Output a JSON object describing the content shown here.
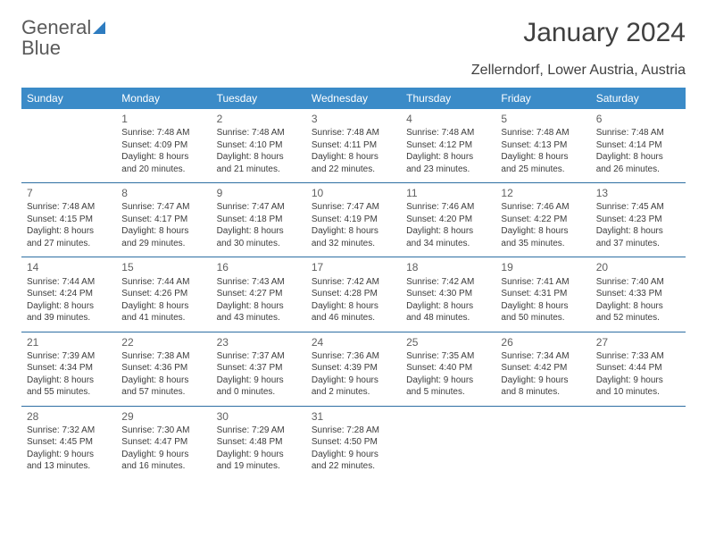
{
  "logo": {
    "word1": "General",
    "word2": "Blue"
  },
  "title": "January 2024",
  "subtitle": "Zellerndorf, Lower Austria, Austria",
  "colors": {
    "header_bg": "#3b8bc8",
    "header_text": "#ffffff",
    "row_border": "#2e6fa3",
    "body_text": "#3c3c3c",
    "daynum_text": "#606060",
    "logo_gray": "#5a5a5a",
    "logo_blue": "#2e7cc0",
    "background": "#ffffff"
  },
  "typography": {
    "title_fontsize": 30,
    "subtitle_fontsize": 16,
    "th_fontsize": 12,
    "daynum_fontsize": 12,
    "cell_fontsize": 10
  },
  "layout": {
    "columns": 7,
    "rows": 5
  },
  "day_headers": [
    "Sunday",
    "Monday",
    "Tuesday",
    "Wednesday",
    "Thursday",
    "Friday",
    "Saturday"
  ],
  "weeks": [
    [
      {
        "num": "",
        "sunrise": "",
        "sunset": "",
        "daylight1": "",
        "daylight2": ""
      },
      {
        "num": "1",
        "sunrise": "Sunrise: 7:48 AM",
        "sunset": "Sunset: 4:09 PM",
        "daylight1": "Daylight: 8 hours",
        "daylight2": "and 20 minutes."
      },
      {
        "num": "2",
        "sunrise": "Sunrise: 7:48 AM",
        "sunset": "Sunset: 4:10 PM",
        "daylight1": "Daylight: 8 hours",
        "daylight2": "and 21 minutes."
      },
      {
        "num": "3",
        "sunrise": "Sunrise: 7:48 AM",
        "sunset": "Sunset: 4:11 PM",
        "daylight1": "Daylight: 8 hours",
        "daylight2": "and 22 minutes."
      },
      {
        "num": "4",
        "sunrise": "Sunrise: 7:48 AM",
        "sunset": "Sunset: 4:12 PM",
        "daylight1": "Daylight: 8 hours",
        "daylight2": "and 23 minutes."
      },
      {
        "num": "5",
        "sunrise": "Sunrise: 7:48 AM",
        "sunset": "Sunset: 4:13 PM",
        "daylight1": "Daylight: 8 hours",
        "daylight2": "and 25 minutes."
      },
      {
        "num": "6",
        "sunrise": "Sunrise: 7:48 AM",
        "sunset": "Sunset: 4:14 PM",
        "daylight1": "Daylight: 8 hours",
        "daylight2": "and 26 minutes."
      }
    ],
    [
      {
        "num": "7",
        "sunrise": "Sunrise: 7:48 AM",
        "sunset": "Sunset: 4:15 PM",
        "daylight1": "Daylight: 8 hours",
        "daylight2": "and 27 minutes."
      },
      {
        "num": "8",
        "sunrise": "Sunrise: 7:47 AM",
        "sunset": "Sunset: 4:17 PM",
        "daylight1": "Daylight: 8 hours",
        "daylight2": "and 29 minutes."
      },
      {
        "num": "9",
        "sunrise": "Sunrise: 7:47 AM",
        "sunset": "Sunset: 4:18 PM",
        "daylight1": "Daylight: 8 hours",
        "daylight2": "and 30 minutes."
      },
      {
        "num": "10",
        "sunrise": "Sunrise: 7:47 AM",
        "sunset": "Sunset: 4:19 PM",
        "daylight1": "Daylight: 8 hours",
        "daylight2": "and 32 minutes."
      },
      {
        "num": "11",
        "sunrise": "Sunrise: 7:46 AM",
        "sunset": "Sunset: 4:20 PM",
        "daylight1": "Daylight: 8 hours",
        "daylight2": "and 34 minutes."
      },
      {
        "num": "12",
        "sunrise": "Sunrise: 7:46 AM",
        "sunset": "Sunset: 4:22 PM",
        "daylight1": "Daylight: 8 hours",
        "daylight2": "and 35 minutes."
      },
      {
        "num": "13",
        "sunrise": "Sunrise: 7:45 AM",
        "sunset": "Sunset: 4:23 PM",
        "daylight1": "Daylight: 8 hours",
        "daylight2": "and 37 minutes."
      }
    ],
    [
      {
        "num": "14",
        "sunrise": "Sunrise: 7:44 AM",
        "sunset": "Sunset: 4:24 PM",
        "daylight1": "Daylight: 8 hours",
        "daylight2": "and 39 minutes."
      },
      {
        "num": "15",
        "sunrise": "Sunrise: 7:44 AM",
        "sunset": "Sunset: 4:26 PM",
        "daylight1": "Daylight: 8 hours",
        "daylight2": "and 41 minutes."
      },
      {
        "num": "16",
        "sunrise": "Sunrise: 7:43 AM",
        "sunset": "Sunset: 4:27 PM",
        "daylight1": "Daylight: 8 hours",
        "daylight2": "and 43 minutes."
      },
      {
        "num": "17",
        "sunrise": "Sunrise: 7:42 AM",
        "sunset": "Sunset: 4:28 PM",
        "daylight1": "Daylight: 8 hours",
        "daylight2": "and 46 minutes."
      },
      {
        "num": "18",
        "sunrise": "Sunrise: 7:42 AM",
        "sunset": "Sunset: 4:30 PM",
        "daylight1": "Daylight: 8 hours",
        "daylight2": "and 48 minutes."
      },
      {
        "num": "19",
        "sunrise": "Sunrise: 7:41 AM",
        "sunset": "Sunset: 4:31 PM",
        "daylight1": "Daylight: 8 hours",
        "daylight2": "and 50 minutes."
      },
      {
        "num": "20",
        "sunrise": "Sunrise: 7:40 AM",
        "sunset": "Sunset: 4:33 PM",
        "daylight1": "Daylight: 8 hours",
        "daylight2": "and 52 minutes."
      }
    ],
    [
      {
        "num": "21",
        "sunrise": "Sunrise: 7:39 AM",
        "sunset": "Sunset: 4:34 PM",
        "daylight1": "Daylight: 8 hours",
        "daylight2": "and 55 minutes."
      },
      {
        "num": "22",
        "sunrise": "Sunrise: 7:38 AM",
        "sunset": "Sunset: 4:36 PM",
        "daylight1": "Daylight: 8 hours",
        "daylight2": "and 57 minutes."
      },
      {
        "num": "23",
        "sunrise": "Sunrise: 7:37 AM",
        "sunset": "Sunset: 4:37 PM",
        "daylight1": "Daylight: 9 hours",
        "daylight2": "and 0 minutes."
      },
      {
        "num": "24",
        "sunrise": "Sunrise: 7:36 AM",
        "sunset": "Sunset: 4:39 PM",
        "daylight1": "Daylight: 9 hours",
        "daylight2": "and 2 minutes."
      },
      {
        "num": "25",
        "sunrise": "Sunrise: 7:35 AM",
        "sunset": "Sunset: 4:40 PM",
        "daylight1": "Daylight: 9 hours",
        "daylight2": "and 5 minutes."
      },
      {
        "num": "26",
        "sunrise": "Sunrise: 7:34 AM",
        "sunset": "Sunset: 4:42 PM",
        "daylight1": "Daylight: 9 hours",
        "daylight2": "and 8 minutes."
      },
      {
        "num": "27",
        "sunrise": "Sunrise: 7:33 AM",
        "sunset": "Sunset: 4:44 PM",
        "daylight1": "Daylight: 9 hours",
        "daylight2": "and 10 minutes."
      }
    ],
    [
      {
        "num": "28",
        "sunrise": "Sunrise: 7:32 AM",
        "sunset": "Sunset: 4:45 PM",
        "daylight1": "Daylight: 9 hours",
        "daylight2": "and 13 minutes."
      },
      {
        "num": "29",
        "sunrise": "Sunrise: 7:30 AM",
        "sunset": "Sunset: 4:47 PM",
        "daylight1": "Daylight: 9 hours",
        "daylight2": "and 16 minutes."
      },
      {
        "num": "30",
        "sunrise": "Sunrise: 7:29 AM",
        "sunset": "Sunset: 4:48 PM",
        "daylight1": "Daylight: 9 hours",
        "daylight2": "and 19 minutes."
      },
      {
        "num": "31",
        "sunrise": "Sunrise: 7:28 AM",
        "sunset": "Sunset: 4:50 PM",
        "daylight1": "Daylight: 9 hours",
        "daylight2": "and 22 minutes."
      },
      {
        "num": "",
        "sunrise": "",
        "sunset": "",
        "daylight1": "",
        "daylight2": ""
      },
      {
        "num": "",
        "sunrise": "",
        "sunset": "",
        "daylight1": "",
        "daylight2": ""
      },
      {
        "num": "",
        "sunrise": "",
        "sunset": "",
        "daylight1": "",
        "daylight2": ""
      }
    ]
  ]
}
